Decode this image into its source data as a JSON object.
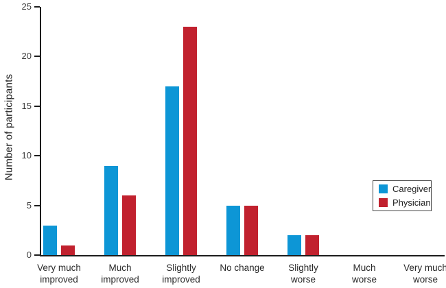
{
  "chart_data": {
    "type": "bar",
    "title": "",
    "xlabel": "",
    "ylabel": "Number of participants",
    "ylim": [
      0,
      25
    ],
    "yticks": [
      0,
      5,
      10,
      15,
      20,
      25
    ],
    "grid": false,
    "legend_position": "right-middle",
    "categories": [
      [
        "Very much",
        "improved"
      ],
      [
        "Much",
        "improved"
      ],
      [
        "Slightly",
        "improved"
      ],
      [
        "No change"
      ],
      [
        "Slightly",
        "worse"
      ],
      [
        "Much",
        "worse"
      ],
      [
        "Very much",
        "worse"
      ]
    ],
    "series": [
      {
        "name": "Caregiver",
        "color": "#0D96D6",
        "values": [
          3,
          9,
          17,
          5,
          2,
          0,
          0
        ]
      },
      {
        "name": "Physician",
        "color": "#C1212E",
        "values": [
          1,
          6,
          23,
          5,
          2,
          0,
          0
        ]
      }
    ]
  },
  "colors": {
    "axis": "#1c1c1c",
    "tick_text": "#3a3a3a",
    "background": "#ffffff"
  }
}
